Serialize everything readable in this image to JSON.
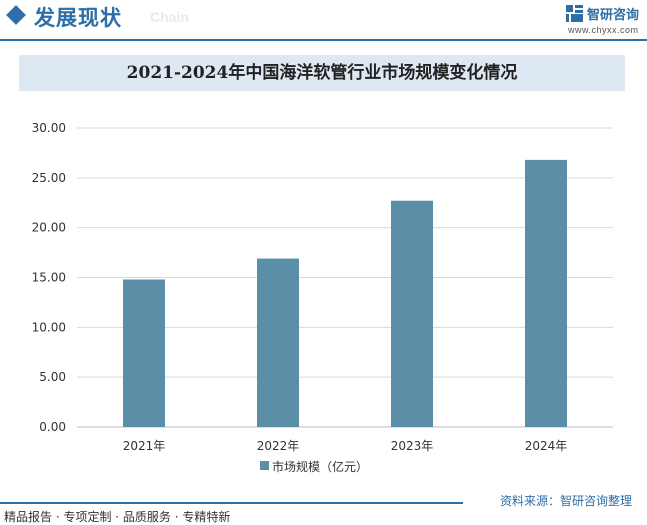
{
  "header": {
    "section_title": "发展现状",
    "section_subtitle": "Chain",
    "brand_name": "智研咨询",
    "brand_url": "www.chyxx.com",
    "logo_icon": "zhiyan-logo-icon",
    "accent_color": "#2e6ea6"
  },
  "chart_data": {
    "type": "bar",
    "title": "2021-2024年中国海洋软管行业市场规模变化情况",
    "categories": [
      "2021年",
      "2022年",
      "2023年",
      "2024年"
    ],
    "series": [
      {
        "name": "市场规模（亿元）",
        "values": [
          14.8,
          16.9,
          22.7,
          26.8
        ],
        "color": "#5b8fa8"
      }
    ],
    "y_ticks": [
      "0.00",
      "5.00",
      "10.00",
      "15.00",
      "20.00",
      "25.00",
      "30.00"
    ],
    "ylim": [
      0,
      30
    ],
    "grid": true,
    "legend_position": "bottom"
  },
  "footer": {
    "left_text": "精品报告 · 专项定制 · 品质服务 · 专精特新",
    "source_text": "资料来源：智研咨询整理"
  }
}
